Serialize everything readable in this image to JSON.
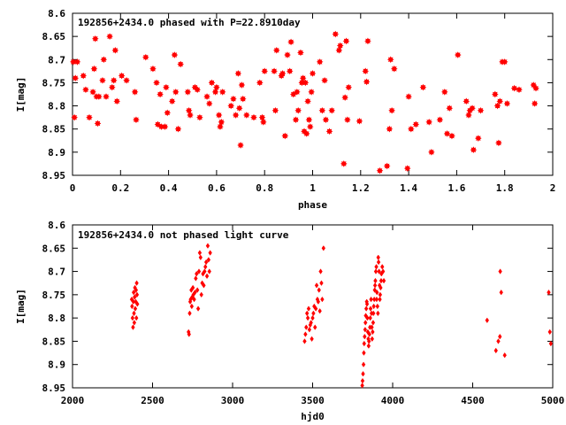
{
  "colors": {
    "points": "#ff0000",
    "axes": "#000000",
    "background": "#ffffff"
  },
  "chart_data": [
    {
      "type": "scatter",
      "title": "192856+2434.0 phased with P=22.8910day",
      "xlabel": "phase",
      "ylabel": "I[mag]",
      "xlim": [
        0,
        2
      ],
      "ylim": [
        8.6,
        8.95
      ],
      "y_inverted": true,
      "grid": false,
      "marker": "star",
      "xticks": [
        0,
        0.2,
        0.4,
        0.6,
        0.8,
        1,
        1.2,
        1.4,
        1.6,
        1.8,
        2
      ],
      "xtick_labels": [
        "0",
        "0.2",
        "0.4",
        "0.6",
        "0.8",
        "1",
        "1.2",
        "1.4",
        "1.6",
        "1.8",
        "2"
      ],
      "yticks": [
        8.6,
        8.65,
        8.7,
        8.75,
        8.8,
        8.85,
        8.9,
        8.95
      ],
      "ytick_labels": [
        "8.6",
        "8.65",
        "8.7",
        "8.75",
        "8.8",
        "8.85",
        "8.9",
        "8.95"
      ],
      "points": [
        [
          0.003,
          8.705
        ],
        [
          0.008,
          8.825
        ],
        [
          0.012,
          8.74
        ],
        [
          0.02,
          8.705
        ],
        [
          0.045,
          8.735
        ],
        [
          0.055,
          8.765
        ],
        [
          0.07,
          8.825
        ],
        [
          0.085,
          8.77
        ],
        [
          0.09,
          8.72
        ],
        [
          0.095,
          8.655
        ],
        [
          0.1,
          8.78
        ],
        [
          0.105,
          8.838
        ],
        [
          0.11,
          8.78
        ],
        [
          0.125,
          8.745
        ],
        [
          0.13,
          8.7
        ],
        [
          0.14,
          8.78
        ],
        [
          0.155,
          8.65
        ],
        [
          0.165,
          8.76
        ],
        [
          0.172,
          8.745
        ],
        [
          0.178,
          8.68
        ],
        [
          0.185,
          8.79
        ],
        [
          0.205,
          8.735
        ],
        [
          0.225,
          8.745
        ],
        [
          0.26,
          8.77
        ],
        [
          0.265,
          8.83
        ],
        [
          0.305,
          8.695
        ],
        [
          0.335,
          8.72
        ],
        [
          0.35,
          8.75
        ],
        [
          0.355,
          8.84
        ],
        [
          0.365,
          8.775
        ],
        [
          0.37,
          8.845
        ],
        [
          0.385,
          8.845
        ],
        [
          0.39,
          8.76
        ],
        [
          0.395,
          8.815
        ],
        [
          0.415,
          8.79
        ],
        [
          0.425,
          8.69
        ],
        [
          0.43,
          8.77
        ],
        [
          0.44,
          8.85
        ],
        [
          0.45,
          8.71
        ],
        [
          0.48,
          8.77
        ],
        [
          0.485,
          8.81
        ],
        [
          0.49,
          8.82
        ],
        [
          0.51,
          8.76
        ],
        [
          0.52,
          8.765
        ],
        [
          0.53,
          8.825
        ],
        [
          0.56,
          8.78
        ],
        [
          0.57,
          8.795
        ],
        [
          0.58,
          8.75
        ],
        [
          0.595,
          8.77
        ],
        [
          0.6,
          8.76
        ],
        [
          0.61,
          8.82
        ],
        [
          0.615,
          8.845
        ],
        [
          0.62,
          8.835
        ],
        [
          0.625,
          8.77
        ],
        [
          0.66,
          8.8
        ],
        [
          0.67,
          8.785
        ],
        [
          0.68,
          8.82
        ],
        [
          0.69,
          8.73
        ],
        [
          0.695,
          8.805
        ],
        [
          0.7,
          8.885
        ],
        [
          0.705,
          8.755
        ],
        [
          0.71,
          8.785
        ],
        [
          0.725,
          8.82
        ],
        [
          0.755,
          8.825
        ],
        [
          0.78,
          8.75
        ],
        [
          0.79,
          8.825
        ],
        [
          0.795,
          8.835
        ],
        [
          0.8,
          8.725
        ],
        [
          0.84,
          8.725
        ],
        [
          0.845,
          8.81
        ],
        [
          0.85,
          8.68
        ],
        [
          0.87,
          8.735
        ],
        [
          0.875,
          8.73
        ],
        [
          0.885,
          8.865
        ],
        [
          0.895,
          8.69
        ],
        [
          0.905,
          8.725
        ],
        [
          0.91,
          8.662
        ],
        [
          0.92,
          8.775
        ],
        [
          0.93,
          8.83
        ],
        [
          0.935,
          8.77
        ],
        [
          0.94,
          8.81
        ],
        [
          0.95,
          8.685
        ],
        [
          0.955,
          8.75
        ],
        [
          0.96,
          8.74
        ],
        [
          0.965,
          8.855
        ],
        [
          0.97,
          8.75
        ],
        [
          0.975,
          8.86
        ],
        [
          0.98,
          8.79
        ],
        [
          0.985,
          8.83
        ],
        [
          0.99,
          8.845
        ],
        [
          0.995,
          8.77
        ],
        [
          1.0,
          8.73
        ],
        [
          1.03,
          8.705
        ],
        [
          1.04,
          8.81
        ],
        [
          1.05,
          8.745
        ],
        [
          1.055,
          8.83
        ],
        [
          1.07,
          8.855
        ],
        [
          1.08,
          8.81
        ],
        [
          1.095,
          8.645
        ],
        [
          1.11,
          8.68
        ],
        [
          1.115,
          8.67
        ],
        [
          1.13,
          8.925
        ],
        [
          1.135,
          8.782
        ],
        [
          1.14,
          8.66
        ],
        [
          1.145,
          8.83
        ],
        [
          1.15,
          8.76
        ],
        [
          1.195,
          8.833
        ],
        [
          1.22,
          8.725
        ],
        [
          1.225,
          8.748
        ],
        [
          1.23,
          8.66
        ],
        [
          1.28,
          8.94
        ],
        [
          1.31,
          8.93
        ],
        [
          1.32,
          8.85
        ],
        [
          1.325,
          8.7
        ],
        [
          1.33,
          8.81
        ],
        [
          1.34,
          8.72
        ],
        [
          1.395,
          8.935
        ],
        [
          1.4,
          8.78
        ],
        [
          1.41,
          8.85
        ],
        [
          1.43,
          8.84
        ],
        [
          1.46,
          8.76
        ],
        [
          1.485,
          8.835
        ],
        [
          1.495,
          8.9
        ],
        [
          1.53,
          8.83
        ],
        [
          1.55,
          8.77
        ],
        [
          1.56,
          8.86
        ],
        [
          1.57,
          8.805
        ],
        [
          1.58,
          8.865
        ],
        [
          1.605,
          8.69
        ],
        [
          1.64,
          8.79
        ],
        [
          1.65,
          8.82
        ],
        [
          1.655,
          8.81
        ],
        [
          1.665,
          8.805
        ],
        [
          1.67,
          8.895
        ],
        [
          1.69,
          8.87
        ],
        [
          1.7,
          8.81
        ],
        [
          1.76,
          8.775
        ],
        [
          1.77,
          8.8
        ],
        [
          1.775,
          8.88
        ],
        [
          1.78,
          8.79
        ],
        [
          1.79,
          8.705
        ],
        [
          1.8,
          8.705
        ],
        [
          1.81,
          8.795
        ],
        [
          1.84,
          8.762
        ],
        [
          1.86,
          8.765
        ],
        [
          1.92,
          8.755
        ],
        [
          1.925,
          8.795
        ],
        [
          1.93,
          8.762
        ]
      ]
    },
    {
      "type": "scatter",
      "title": "192856+2434.0 not phased light curve",
      "xlabel": "hjd0",
      "ylabel": "I[mag]",
      "xlim": [
        2000,
        5000
      ],
      "ylim": [
        8.6,
        8.95
      ],
      "y_inverted": true,
      "grid": false,
      "marker": "diamond",
      "xticks": [
        2000,
        2500,
        3000,
        3500,
        4000,
        4500,
        5000
      ],
      "xtick_labels": [
        "2000",
        "2500",
        "3000",
        "3500",
        "4000",
        "4500",
        "5000"
      ],
      "yticks": [
        8.6,
        8.65,
        8.7,
        8.75,
        8.8,
        8.85,
        8.9,
        8.95
      ],
      "ytick_labels": [
        "8.6",
        "8.65",
        "8.7",
        "8.75",
        "8.8",
        "8.85",
        "8.9",
        "8.95"
      ],
      "points": [
        [
          2370,
          8.76
        ],
        [
          2372,
          8.775
        ],
        [
          2375,
          8.8
        ],
        [
          2378,
          8.82
        ],
        [
          2380,
          8.765
        ],
        [
          2382,
          8.745
        ],
        [
          2384,
          8.79
        ],
        [
          2386,
          8.81
        ],
        [
          2388,
          8.755
        ],
        [
          2390,
          8.735
        ],
        [
          2392,
          8.78
        ],
        [
          2395,
          8.765
        ],
        [
          2397,
          8.74
        ],
        [
          2399,
          8.8
        ],
        [
          2401,
          8.725
        ],
        [
          2403,
          8.75
        ],
        [
          2405,
          8.77
        ],
        [
          2725,
          8.83
        ],
        [
          2728,
          8.835
        ],
        [
          2732,
          8.79
        ],
        [
          2735,
          8.765
        ],
        [
          2738,
          8.76
        ],
        [
          2742,
          8.74
        ],
        [
          2745,
          8.775
        ],
        [
          2748,
          8.755
        ],
        [
          2752,
          8.735
        ],
        [
          2755,
          8.75
        ],
        [
          2760,
          8.76
        ],
        [
          2765,
          8.745
        ],
        [
          2770,
          8.715
        ],
        [
          2775,
          8.705
        ],
        [
          2780,
          8.74
        ],
        [
          2785,
          8.78
        ],
        [
          2790,
          8.7
        ],
        [
          2795,
          8.66
        ],
        [
          2800,
          8.67
        ],
        [
          2805,
          8.75
        ],
        [
          2810,
          8.725
        ],
        [
          2815,
          8.705
        ],
        [
          2820,
          8.73
        ],
        [
          2825,
          8.7
        ],
        [
          2830,
          8.69
        ],
        [
          2835,
          8.68
        ],
        [
          2840,
          8.71
        ],
        [
          2845,
          8.645
        ],
        [
          2850,
          8.675
        ],
        [
          2855,
          8.7
        ],
        [
          2860,
          8.66
        ],
        [
          3450,
          8.85
        ],
        [
          3455,
          8.835
        ],
        [
          3460,
          8.82
        ],
        [
          3465,
          8.79
        ],
        [
          3470,
          8.8
        ],
        [
          3475,
          8.78
        ],
        [
          3480,
          8.825
        ],
        [
          3485,
          8.815
        ],
        [
          3490,
          8.81
        ],
        [
          3495,
          8.845
        ],
        [
          3500,
          8.8
        ],
        [
          3505,
          8.79
        ],
        [
          3510,
          8.775
        ],
        [
          3515,
          8.82
        ],
        [
          3520,
          8.78
        ],
        [
          3525,
          8.73
        ],
        [
          3530,
          8.76
        ],
        [
          3535,
          8.765
        ],
        [
          3540,
          8.74
        ],
        [
          3545,
          8.785
        ],
        [
          3550,
          8.7
        ],
        [
          3555,
          8.725
        ],
        [
          3560,
          8.76
        ],
        [
          3568,
          8.65
        ],
        [
          3810,
          8.945
        ],
        [
          3812,
          8.935
        ],
        [
          3815,
          8.92
        ],
        [
          3818,
          8.9
        ],
        [
          3820,
          8.875
        ],
        [
          3822,
          8.855
        ],
        [
          3825,
          8.84
        ],
        [
          3828,
          8.825
        ],
        [
          3830,
          8.81
        ],
        [
          3832,
          8.795
        ],
        [
          3835,
          8.78
        ],
        [
          3838,
          8.765
        ],
        [
          3840,
          8.77
        ],
        [
          3842,
          8.8
        ],
        [
          3845,
          8.83
        ],
        [
          3848,
          8.845
        ],
        [
          3850,
          8.86
        ],
        [
          3852,
          8.85
        ],
        [
          3855,
          8.835
        ],
        [
          3858,
          8.82
        ],
        [
          3860,
          8.8
        ],
        [
          3862,
          8.78
        ],
        [
          3865,
          8.76
        ],
        [
          3868,
          8.79
        ],
        [
          3870,
          8.82
        ],
        [
          3872,
          8.845
        ],
        [
          3875,
          8.83
        ],
        [
          3878,
          8.81
        ],
        [
          3880,
          8.79
        ],
        [
          3882,
          8.775
        ],
        [
          3885,
          8.76
        ],
        [
          3888,
          8.74
        ],
        [
          3890,
          8.73
        ],
        [
          3892,
          8.72
        ],
        [
          3895,
          8.7
        ],
        [
          3898,
          8.69
        ],
        [
          3900,
          8.76
        ],
        [
          3902,
          8.745
        ],
        [
          3905,
          8.775
        ],
        [
          3908,
          8.79
        ],
        [
          3910,
          8.67
        ],
        [
          3912,
          8.68
        ],
        [
          3915,
          8.7
        ],
        [
          3918,
          8.73
        ],
        [
          3920,
          8.76
        ],
        [
          3922,
          8.75
        ],
        [
          3925,
          8.735
        ],
        [
          3928,
          8.72
        ],
        [
          3930,
          8.705
        ],
        [
          3935,
          8.69
        ],
        [
          3940,
          8.7
        ],
        [
          3945,
          8.72
        ],
        [
          4590,
          8.805
        ],
        [
          4645,
          8.87
        ],
        [
          4660,
          8.85
        ],
        [
          4670,
          8.84
        ],
        [
          4672,
          8.7
        ],
        [
          4678,
          8.745
        ],
        [
          4700,
          8.88
        ],
        [
          4975,
          8.745
        ],
        [
          4982,
          8.83
        ],
        [
          4988,
          8.855
        ]
      ]
    }
  ]
}
